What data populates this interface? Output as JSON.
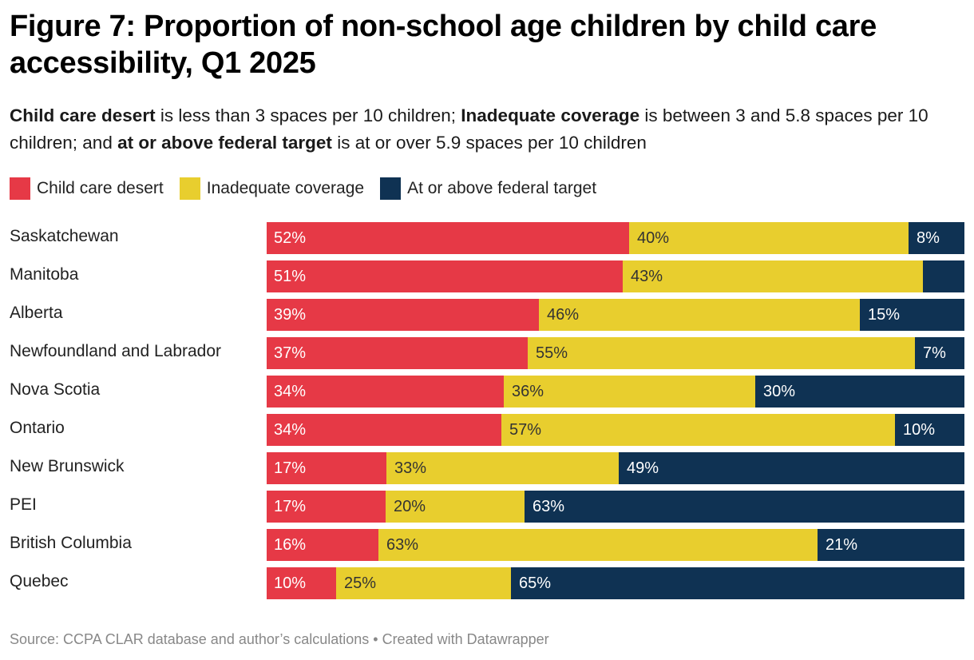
{
  "header": {
    "title": "Figure 7: Proportion of non-school age children by child care accessibility, Q1 2025",
    "subtitle_parts": [
      {
        "text": "Child care desert",
        "bold": true
      },
      {
        "text": " is less than 3 spaces per 10 children; ",
        "bold": false
      },
      {
        "text": "Inadequate coverage",
        "bold": true
      },
      {
        "text": " is between 3 and 5.8 spaces per 10 children; and ",
        "bold": false
      },
      {
        "text": "at or above federal target",
        "bold": true
      },
      {
        "text": " is at or over 5.9 spaces per 10 children",
        "bold": false
      }
    ]
  },
  "footer": {
    "source": "Source: CCPA CLAR database and author’s calculations • Created with Datawrapper"
  },
  "chart_data": {
    "type": "bar",
    "orientation": "horizontal",
    "stacked": true,
    "normalized": true,
    "title": "Figure 7: Proportion of non-school age children by child care accessibility, Q1 2025",
    "xlabel": "",
    "ylabel": "",
    "xlim": [
      0,
      100
    ],
    "unit": "%",
    "grid": false,
    "legend_position": "top-left",
    "categories": [
      "Saskatchewan",
      "Manitoba",
      "Alberta",
      "Newfoundland and Labrador",
      "Nova Scotia",
      "Ontario",
      "New Brunswick",
      "PEI",
      "British Columbia",
      "Quebec"
    ],
    "series": [
      {
        "name": "Child care desert",
        "color": "#e63946",
        "label_color": "#ffffff",
        "values": [
          52,
          51,
          39,
          37,
          34,
          34,
          17,
          17,
          16,
          10
        ],
        "labels": [
          "52%",
          "51%",
          "39%",
          "37%",
          "34%",
          "34%",
          "17%",
          "17%",
          "16%",
          "10%"
        ]
      },
      {
        "name": "Inadequate coverage",
        "color": "#e8ce2e",
        "label_color": "#333333",
        "values": [
          40,
          43,
          46,
          55,
          36,
          57,
          33,
          20,
          63,
          25
        ],
        "labels": [
          "40%",
          "43%",
          "46%",
          "55%",
          "36%",
          "57%",
          "33%",
          "20%",
          "63%",
          "25%"
        ]
      },
      {
        "name": "At or above federal target",
        "color": "#0f3253",
        "label_color": "#ffffff",
        "values": [
          8,
          6,
          15,
          7,
          30,
          10,
          49,
          63,
          21,
          65
        ],
        "labels": [
          "8%",
          "",
          "15%",
          "7%",
          "30%",
          "10%",
          "49%",
          "63%",
          "21%",
          "65%"
        ]
      }
    ]
  }
}
